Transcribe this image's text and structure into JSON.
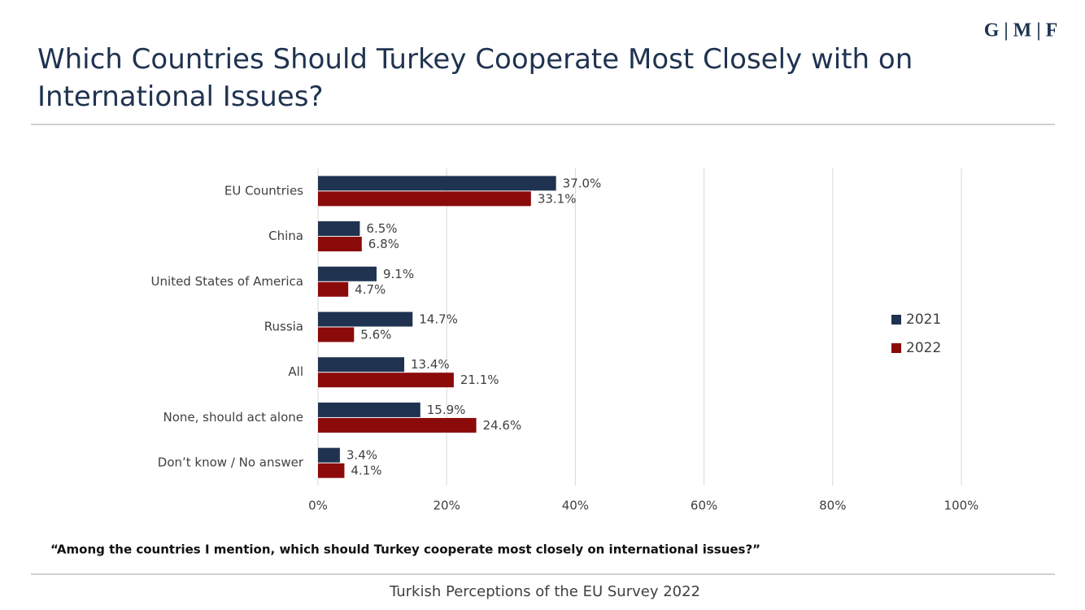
{
  "logo": "G | M | F",
  "note": "“Among the countries I mention, which should Turkey cooperate most closely on international issues?”",
  "footer": "Turkish Perceptions of the EU Survey 2022",
  "chart_data": {
    "type": "hbar",
    "title": "Which Countries Should Turkey Cooperate Most Closely with on International Issues?",
    "categories": [
      "EU Countries",
      "China",
      "United States of America",
      "Russia",
      "All",
      "None, should act alone",
      "Don’t know / No answer"
    ],
    "series": [
      {
        "name": "2021",
        "color": "#1f3350",
        "values": [
          37.0,
          6.5,
          9.1,
          14.7,
          13.4,
          15.9,
          3.4
        ],
        "value_labels": [
          "37.0%",
          "6.5%",
          "9.1%",
          "14.7%",
          "13.4%",
          "15.9%",
          "3.4%"
        ]
      },
      {
        "name": "2022",
        "color": "#8b0a0a",
        "values": [
          33.1,
          6.8,
          4.7,
          5.6,
          21.1,
          24.6,
          4.1
        ],
        "value_labels": [
          "33.1%",
          "6.8%",
          "4.7%",
          "5.6%",
          "21.1%",
          "24.6%",
          "4.1%"
        ]
      }
    ],
    "xlim": [
      0,
      100
    ],
    "xticks": [
      {
        "value": 0,
        "label": "0%"
      },
      {
        "value": 20,
        "label": "20%"
      },
      {
        "value": 40,
        "label": "40%"
      },
      {
        "value": 60,
        "label": "60%"
      },
      {
        "value": 80,
        "label": "80%"
      },
      {
        "value": 100,
        "label": "100%"
      }
    ],
    "grid": true,
    "legend": "right"
  }
}
